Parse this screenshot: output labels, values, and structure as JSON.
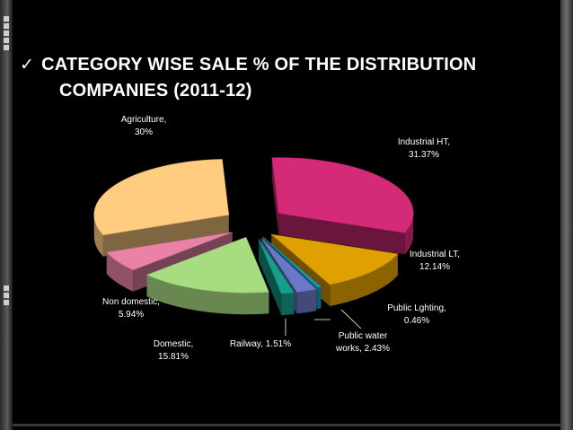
{
  "title": {
    "check_icon": "checkmark-icon",
    "line1": "CATEGORY WISE SALE % OF THE DISTRIBUTION",
    "line2": "COMPANIES (2011-12)"
  },
  "chart_data": {
    "type": "pie",
    "title": "",
    "slices": [
      {
        "label_line1": "Industrial HT,",
        "label_line2": "31.37%",
        "value": 31.37,
        "color": "#d42a78"
      },
      {
        "label_line1": "Industrial LT,",
        "label_line2": "12.14%",
        "value": 12.14,
        "color": "#e0a000"
      },
      {
        "label_line1": "Public Lghting,",
        "label_line2": "0.46%",
        "value": 0.46,
        "color": "#1a9ab8"
      },
      {
        "label_line1": "Public water",
        "label_line2": "works, 2.43%",
        "value": 2.43,
        "color": "#6a78c8"
      },
      {
        "label_line1": "Railway, 1.51%",
        "label_line2": "",
        "value": 1.51,
        "color": "#15a08a"
      },
      {
        "label_line1": "Domestic,",
        "label_line2": "15.81%",
        "value": 15.81,
        "color": "#a8dc80"
      },
      {
        "label_line1": "Non domestic,",
        "label_line2": "5.94%",
        "value": 5.94,
        "color": "#ea82a8"
      },
      {
        "label_line1": "Agriculture,",
        "label_line2": "30%",
        "value": 30,
        "color": "#ffcc80"
      }
    ]
  }
}
